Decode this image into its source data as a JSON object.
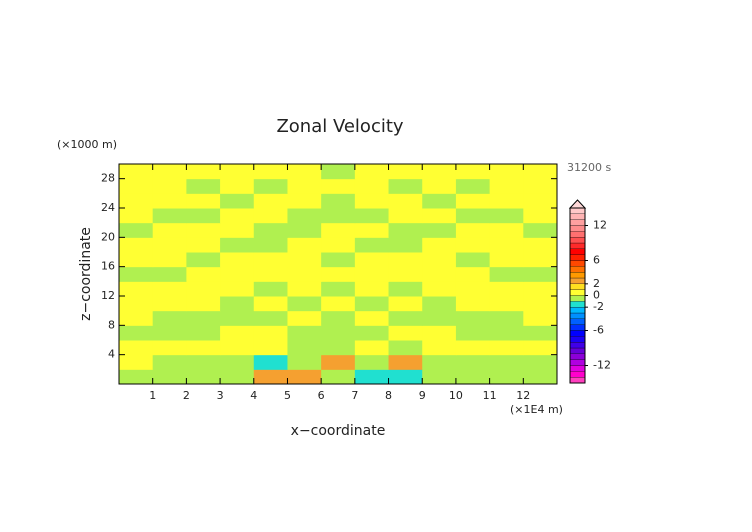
{
  "chart_data": {
    "type": "contour",
    "title": "Zonal Velocity",
    "y_unit": "(×1000 m)",
    "time_label": "31200 s",
    "ylabel": "z−coordinate",
    "xlabel": "x−coordinate",
    "x_unit": "(×1E4 m)",
    "xlim": [
      0,
      13
    ],
    "xticks": [
      1,
      2,
      3,
      4,
      5,
      6,
      7,
      8,
      9,
      10,
      11,
      12
    ],
    "ylim": [
      0,
      30
    ],
    "yticks": [
      4,
      8,
      12,
      16,
      20,
      24,
      28
    ],
    "z": [
      [
        -0.5,
        -0.5,
        -0.5,
        -0.5,
        2.5,
        2.5,
        -0.5,
        -1.5,
        -1.5,
        -0.5,
        -0.5,
        -0.5,
        -0.5
      ],
      [
        0.5,
        -0.5,
        -0.5,
        -0.5,
        -1.5,
        -0.5,
        2.5,
        -0.5,
        2.5,
        -0.5,
        -0.5,
        -0.5,
        -0.5
      ],
      [
        0.5,
        0.5,
        0.5,
        0.5,
        0.5,
        -0.5,
        -0.5,
        0.5,
        -0.5,
        0.5,
        0.5,
        0.5,
        0.5
      ],
      [
        -0.5,
        -0.5,
        -0.5,
        0.5,
        0.5,
        -0.5,
        -0.5,
        -0.5,
        0.5,
        0.5,
        -0.5,
        -0.5,
        -0.5
      ],
      [
        0.5,
        -0.5,
        -0.5,
        -0.5,
        -0.5,
        0.5,
        -0.5,
        0.5,
        -0.5,
        -0.5,
        -0.5,
        -0.5,
        0.5
      ],
      [
        0.5,
        0.5,
        0.5,
        -0.5,
        0.5,
        -0.5,
        0.5,
        -0.5,
        0.5,
        -0.5,
        0.5,
        0.5,
        0.5
      ],
      [
        0.5,
        0.5,
        0.5,
        0.5,
        -0.5,
        0.5,
        -0.5,
        0.5,
        -0.5,
        0.5,
        0.5,
        0.5,
        0.5
      ],
      [
        -0.5,
        -0.5,
        0.5,
        0.5,
        0.5,
        0.5,
        0.5,
        0.5,
        0.5,
        0.5,
        0.5,
        -0.5,
        -0.5
      ],
      [
        0.5,
        0.5,
        -0.5,
        0.5,
        0.5,
        0.5,
        -0.5,
        0.5,
        0.5,
        0.5,
        -0.5,
        0.5,
        0.5
      ],
      [
        0.5,
        0.5,
        0.5,
        -0.5,
        -0.5,
        0.5,
        0.5,
        -0.5,
        -0.5,
        0.5,
        0.5,
        0.5,
        0.5
      ],
      [
        -0.5,
        0.5,
        0.5,
        0.5,
        -0.5,
        -0.5,
        0.5,
        0.5,
        -0.5,
        -0.5,
        0.5,
        0.5,
        -0.5
      ],
      [
        0.5,
        -0.5,
        -0.5,
        0.5,
        0.5,
        -0.5,
        -0.5,
        -0.5,
        0.5,
        0.5,
        -0.5,
        -0.5,
        0.5
      ],
      [
        0.5,
        0.5,
        0.5,
        -0.5,
        0.5,
        0.5,
        -0.5,
        0.5,
        0.5,
        -0.5,
        0.5,
        0.5,
        0.5
      ],
      [
        0.5,
        0.5,
        -0.5,
        0.5,
        -0.5,
        0.5,
        0.5,
        0.5,
        -0.5,
        0.5,
        -0.5,
        0.5,
        0.5
      ],
      [
        0.5,
        0.5,
        0.5,
        0.5,
        0.5,
        0.5,
        -0.5,
        0.5,
        0.5,
        0.5,
        0.5,
        0.5,
        0.5
      ]
    ],
    "colorbar": {
      "lim": [
        -15,
        15
      ],
      "ticks": [
        12,
        6,
        2,
        0,
        -2,
        -6,
        -12
      ],
      "colors": [
        "#ff3fbf",
        "#ff00cc",
        "#e000e0",
        "#b000e0",
        "#8c00d8",
        "#6600d8",
        "#4000e8",
        "#1a00f5",
        "#0000ff",
        "#0030ff",
        "#0060ff",
        "#0090ff",
        "#00b8ff",
        "#20e0d0",
        "#b0f050",
        "#ffff33",
        "#ffe020",
        "#f5a030",
        "#ff9a00",
        "#ff7000",
        "#ff4800",
        "#ff2000",
        "#ff0000",
        "#ff2a2a",
        "#ff5050",
        "#ff7070",
        "#ff8c8c",
        "#ffa0a0",
        "#ffb4b4",
        "#ffc8c8"
      ]
    }
  }
}
